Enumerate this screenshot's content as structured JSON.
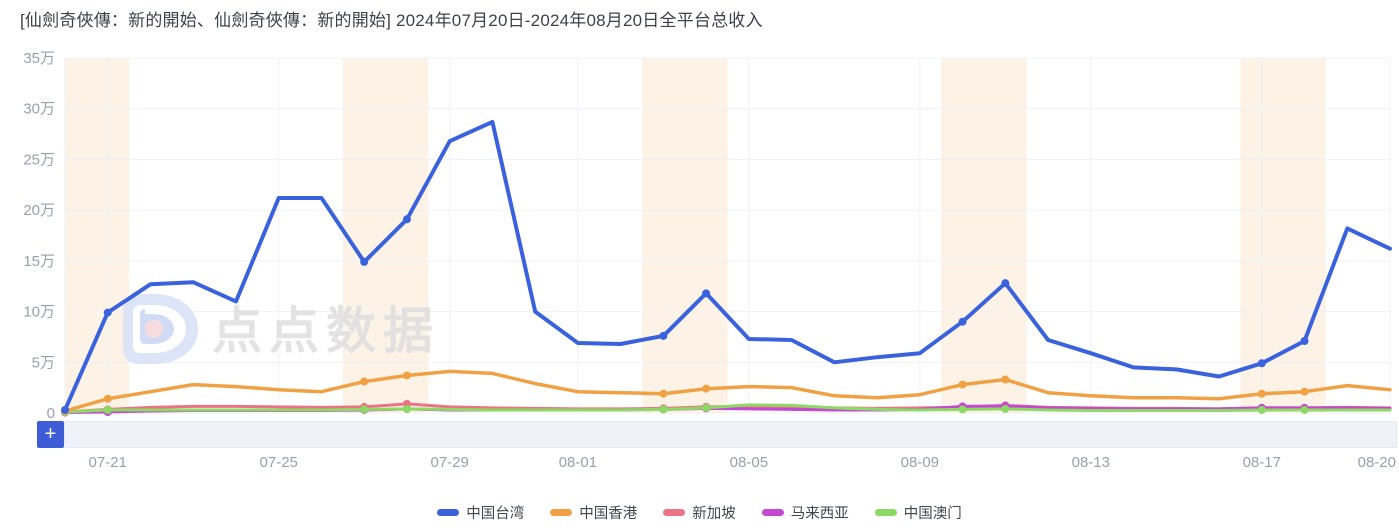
{
  "title": "[仙劍奇俠傳：新的開始、仙劍奇俠傳：新的開始] 2024年07月20日-2024年08月20日全平台总收入",
  "watermark": {
    "text": "点点数据",
    "logo": "diandian-logo"
  },
  "zoom_control": {
    "add_button_label": "+"
  },
  "colors": {
    "taiwan_blue": "#3a62dd",
    "hongkong_orange": "#f0a144",
    "singapore_pink": "#ec7385",
    "malaysia_purple": "#c348d2",
    "macau_green": "#8cd964",
    "weekend_band": "#fcf2e6",
    "gridline": "#eff1f5",
    "axis_text": "#9aa0aa"
  },
  "chart_data": {
    "type": "line",
    "title": "[仙劍奇俠傳：新的開始、仙劍奇俠傳：新的開始] 2024年07月20日-2024年08月20日全平台总收入",
    "y_unit": "万",
    "ylim": [
      0,
      35
    ],
    "grid": true,
    "legend_position": "bottom",
    "x": [
      "07-20",
      "07-21",
      "07-22",
      "07-23",
      "07-24",
      "07-25",
      "07-26",
      "07-27",
      "07-28",
      "07-29",
      "07-30",
      "07-31",
      "08-01",
      "08-02",
      "08-03",
      "08-04",
      "08-05",
      "08-06",
      "08-07",
      "08-08",
      "08-09",
      "08-10",
      "08-11",
      "08-12",
      "08-13",
      "08-14",
      "08-15",
      "08-16",
      "08-17",
      "08-18",
      "08-19",
      "08-20"
    ],
    "x_ticks": [
      {
        "label": "07-21",
        "day": 1
      },
      {
        "label": "07-25",
        "day": 5
      },
      {
        "label": "07-29",
        "day": 9
      },
      {
        "label": "08-01",
        "day": 12
      },
      {
        "label": "08-05",
        "day": 16
      },
      {
        "label": "08-09",
        "day": 20
      },
      {
        "label": "08-13",
        "day": 24
      },
      {
        "label": "08-17",
        "day": 28
      },
      {
        "label": "08-20",
        "day": 31
      }
    ],
    "y_ticks": [
      {
        "label": "0",
        "value": 0
      },
      {
        "label": "5万",
        "value": 5
      },
      {
        "label": "10万",
        "value": 10
      },
      {
        "label": "15万",
        "value": 15
      },
      {
        "label": "20万",
        "value": 20
      },
      {
        "label": "25万",
        "value": 25
      },
      {
        "label": "30万",
        "value": 30
      },
      {
        "label": "35万",
        "value": 35
      }
    ],
    "weekend_bands": [
      [
        0,
        1
      ],
      [
        7,
        8
      ],
      [
        14,
        15
      ],
      [
        21,
        22
      ],
      [
        28,
        29
      ]
    ],
    "marked_days": [
      0,
      1,
      7,
      8,
      14,
      15,
      21,
      22,
      28,
      29
    ],
    "series": [
      {
        "name": "中国台湾",
        "color": "#3a62dd",
        "width": 4,
        "values": [
          0.3,
          9.9,
          12.7,
          12.9,
          11.0,
          21.2,
          21.2,
          14.9,
          19.1,
          26.8,
          28.7,
          10.0,
          6.9,
          6.8,
          7.6,
          11.8,
          7.3,
          7.2,
          5.0,
          5.5,
          5.9,
          9.0,
          12.8,
          7.2,
          5.9,
          4.5,
          4.3,
          3.6,
          4.9,
          7.1,
          18.2,
          16.2
        ]
      },
      {
        "name": "中国香港",
        "color": "#f0a144",
        "width": 3.5,
        "values": [
          0.2,
          1.4,
          2.1,
          2.8,
          2.6,
          2.3,
          2.1,
          3.1,
          3.7,
          4.1,
          3.9,
          2.9,
          2.1,
          2.0,
          1.9,
          2.4,
          2.6,
          2.5,
          1.7,
          1.5,
          1.8,
          2.8,
          3.3,
          2.0,
          1.7,
          1.5,
          1.5,
          1.4,
          1.9,
          2.1,
          2.7,
          2.3
        ]
      },
      {
        "name": "新加坡",
        "color": "#ec7385",
        "width": 3,
        "values": [
          0.1,
          0.35,
          0.55,
          0.65,
          0.65,
          0.6,
          0.55,
          0.6,
          0.9,
          0.6,
          0.5,
          0.45,
          0.4,
          0.4,
          0.45,
          0.6,
          0.65,
          0.55,
          0.5,
          0.45,
          0.5,
          0.55,
          0.75,
          0.55,
          0.5,
          0.45,
          0.45,
          0.4,
          0.5,
          0.5,
          0.55,
          0.5
        ]
      },
      {
        "name": "马来西亚",
        "color": "#c348d2",
        "width": 3,
        "values": [
          0.05,
          0.1,
          0.2,
          0.25,
          0.25,
          0.25,
          0.25,
          0.3,
          0.4,
          0.3,
          0.3,
          0.3,
          0.3,
          0.3,
          0.35,
          0.45,
          0.4,
          0.35,
          0.3,
          0.3,
          0.35,
          0.65,
          0.7,
          0.5,
          0.45,
          0.4,
          0.4,
          0.4,
          0.5,
          0.5,
          0.5,
          0.45
        ]
      },
      {
        "name": "中国澳门",
        "color": "#8cd964",
        "width": 3,
        "values": [
          0.1,
          0.3,
          0.3,
          0.3,
          0.3,
          0.3,
          0.3,
          0.35,
          0.4,
          0.35,
          0.3,
          0.3,
          0.3,
          0.3,
          0.35,
          0.5,
          0.8,
          0.75,
          0.5,
          0.35,
          0.3,
          0.35,
          0.4,
          0.3,
          0.25,
          0.25,
          0.25,
          0.25,
          0.3,
          0.3,
          0.3,
          0.3
        ]
      }
    ]
  }
}
